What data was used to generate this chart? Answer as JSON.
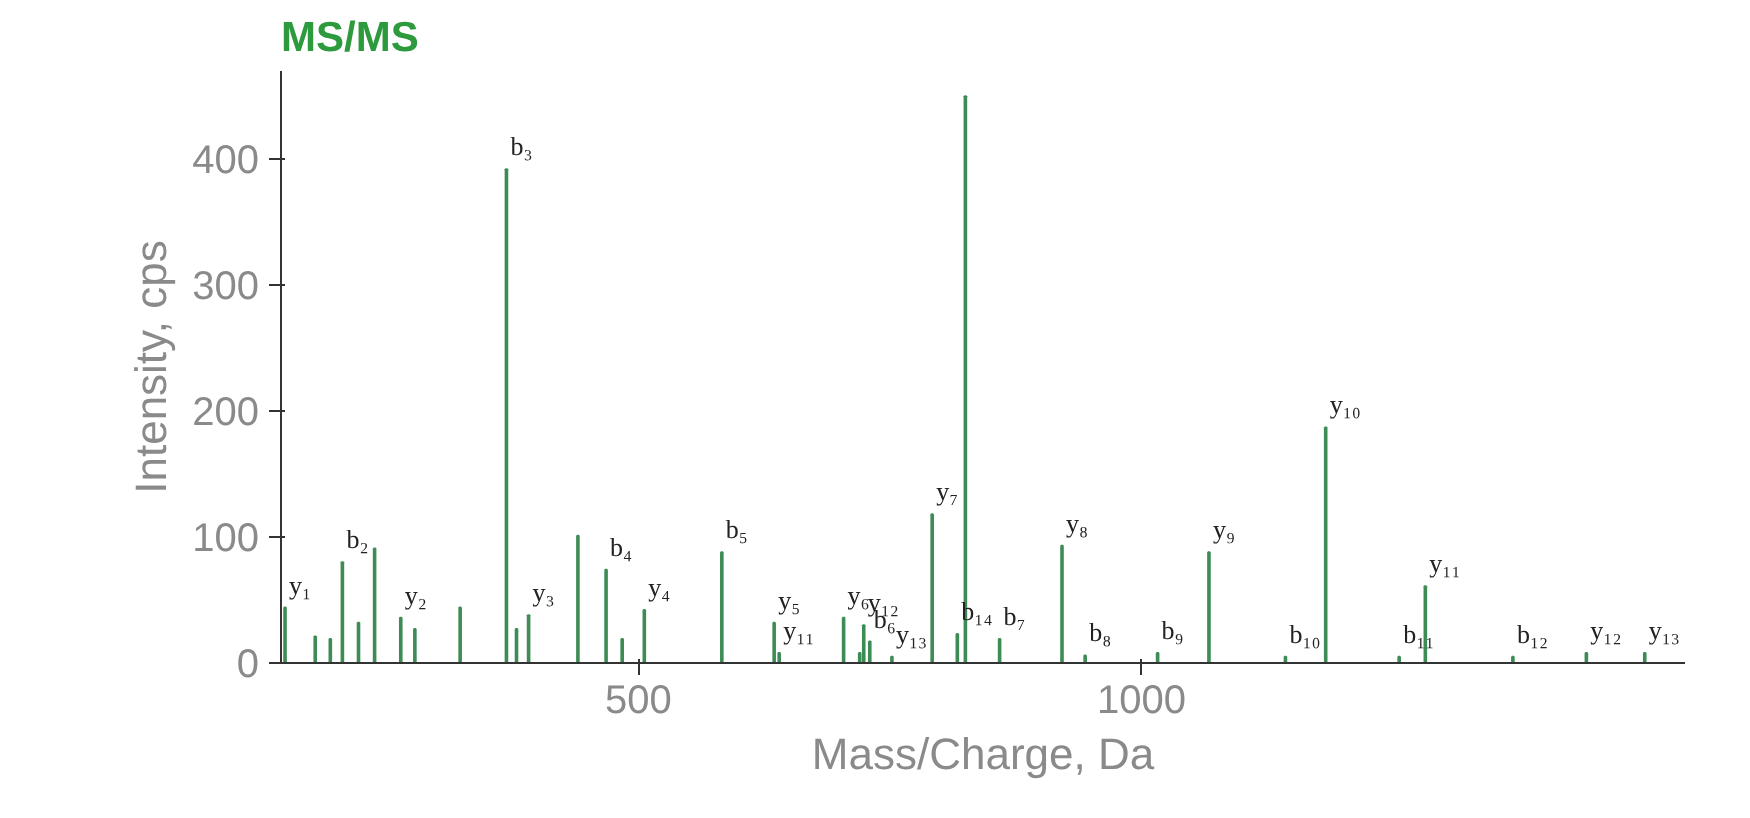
{
  "chart_data": {
    "type": "bar",
    "title": "MS/MS",
    "xlabel": "Mass/Charge, Da",
    "ylabel": "Intensity, cps",
    "x": [
      149,
      179,
      194,
      206,
      222,
      238,
      264,
      278,
      323,
      369,
      379,
      391,
      440,
      468,
      484,
      506,
      583,
      635,
      640,
      704,
      720,
      724,
      730,
      752,
      792,
      817,
      825,
      859,
      921,
      944,
      1016,
      1067,
      1143,
      1183,
      1256,
      1282,
      1369,
      1442,
      1500
    ],
    "values": [
      44,
      21,
      19,
      80,
      32,
      91,
      36,
      27,
      44,
      392,
      27,
      38,
      101,
      74,
      19,
      42,
      88,
      32,
      8,
      36,
      8,
      30,
      17,
      5,
      118,
      23,
      450,
      19,
      93,
      6,
      8,
      88,
      5,
      187,
      5,
      61,
      5,
      8,
      8
    ],
    "color": "#3d8c55",
    "xlim": [
      145,
      1540
    ],
    "xticks": [
      500,
      1000
    ],
    "ylim": [
      0,
      470
    ],
    "yticks": [
      0,
      100,
      200,
      300,
      400
    ],
    "grid": false,
    "annotations": [
      {
        "text": "y₁",
        "x": 149,
        "y": 44
      },
      {
        "text": "b₂",
        "x": 206,
        "y": 80
      },
      {
        "text": "y₂",
        "x": 264,
        "y": 36
      },
      {
        "text": "b₃",
        "x": 369,
        "y": 392
      },
      {
        "text": "y₃",
        "x": 391,
        "y": 38
      },
      {
        "text": "b₄",
        "x": 468,
        "y": 74
      },
      {
        "text": "y₄",
        "x": 506,
        "y": 42
      },
      {
        "text": "b₅",
        "x": 583,
        "y": 88
      },
      {
        "text": "y₅",
        "x": 635,
        "y": 32
      },
      {
        "text": "y₁₁",
        "x": 640,
        "y": 8
      },
      {
        "text": "y₆",
        "x": 704,
        "y": 36
      },
      {
        "text": "y₁₂",
        "x": 724,
        "y": 30
      },
      {
        "text": "b₆",
        "x": 730,
        "y": 17
      },
      {
        "text": "y₁₃",
        "x": 752,
        "y": 5
      },
      {
        "text": "y₇",
        "x": 792,
        "y": 118
      },
      {
        "text": "b₁₄",
        "x": 817,
        "y": 23
      },
      {
        "text": "b₇",
        "x": 859,
        "y": 19
      },
      {
        "text": "y₈",
        "x": 921,
        "y": 93
      },
      {
        "text": "b₈",
        "x": 944,
        "y": 6
      },
      {
        "text": "b₉",
        "x": 1016,
        "y": 8
      },
      {
        "text": "y₉",
        "x": 1067,
        "y": 88
      },
      {
        "text": "b₁₀",
        "x": 1143,
        "y": 5
      },
      {
        "text": "y₁₀",
        "x": 1183,
        "y": 187
      },
      {
        "text": "b₁₁",
        "x": 1256,
        "y": 5
      },
      {
        "text": "y₁₁",
        "x": 1282,
        "y": 61
      },
      {
        "text": "b₁₂",
        "x": 1369,
        "y": 5
      },
      {
        "text": "y₁₂",
        "x": 1442,
        "y": 8
      },
      {
        "text": "y₁₃",
        "x": 1500,
        "y": 8
      }
    ]
  }
}
